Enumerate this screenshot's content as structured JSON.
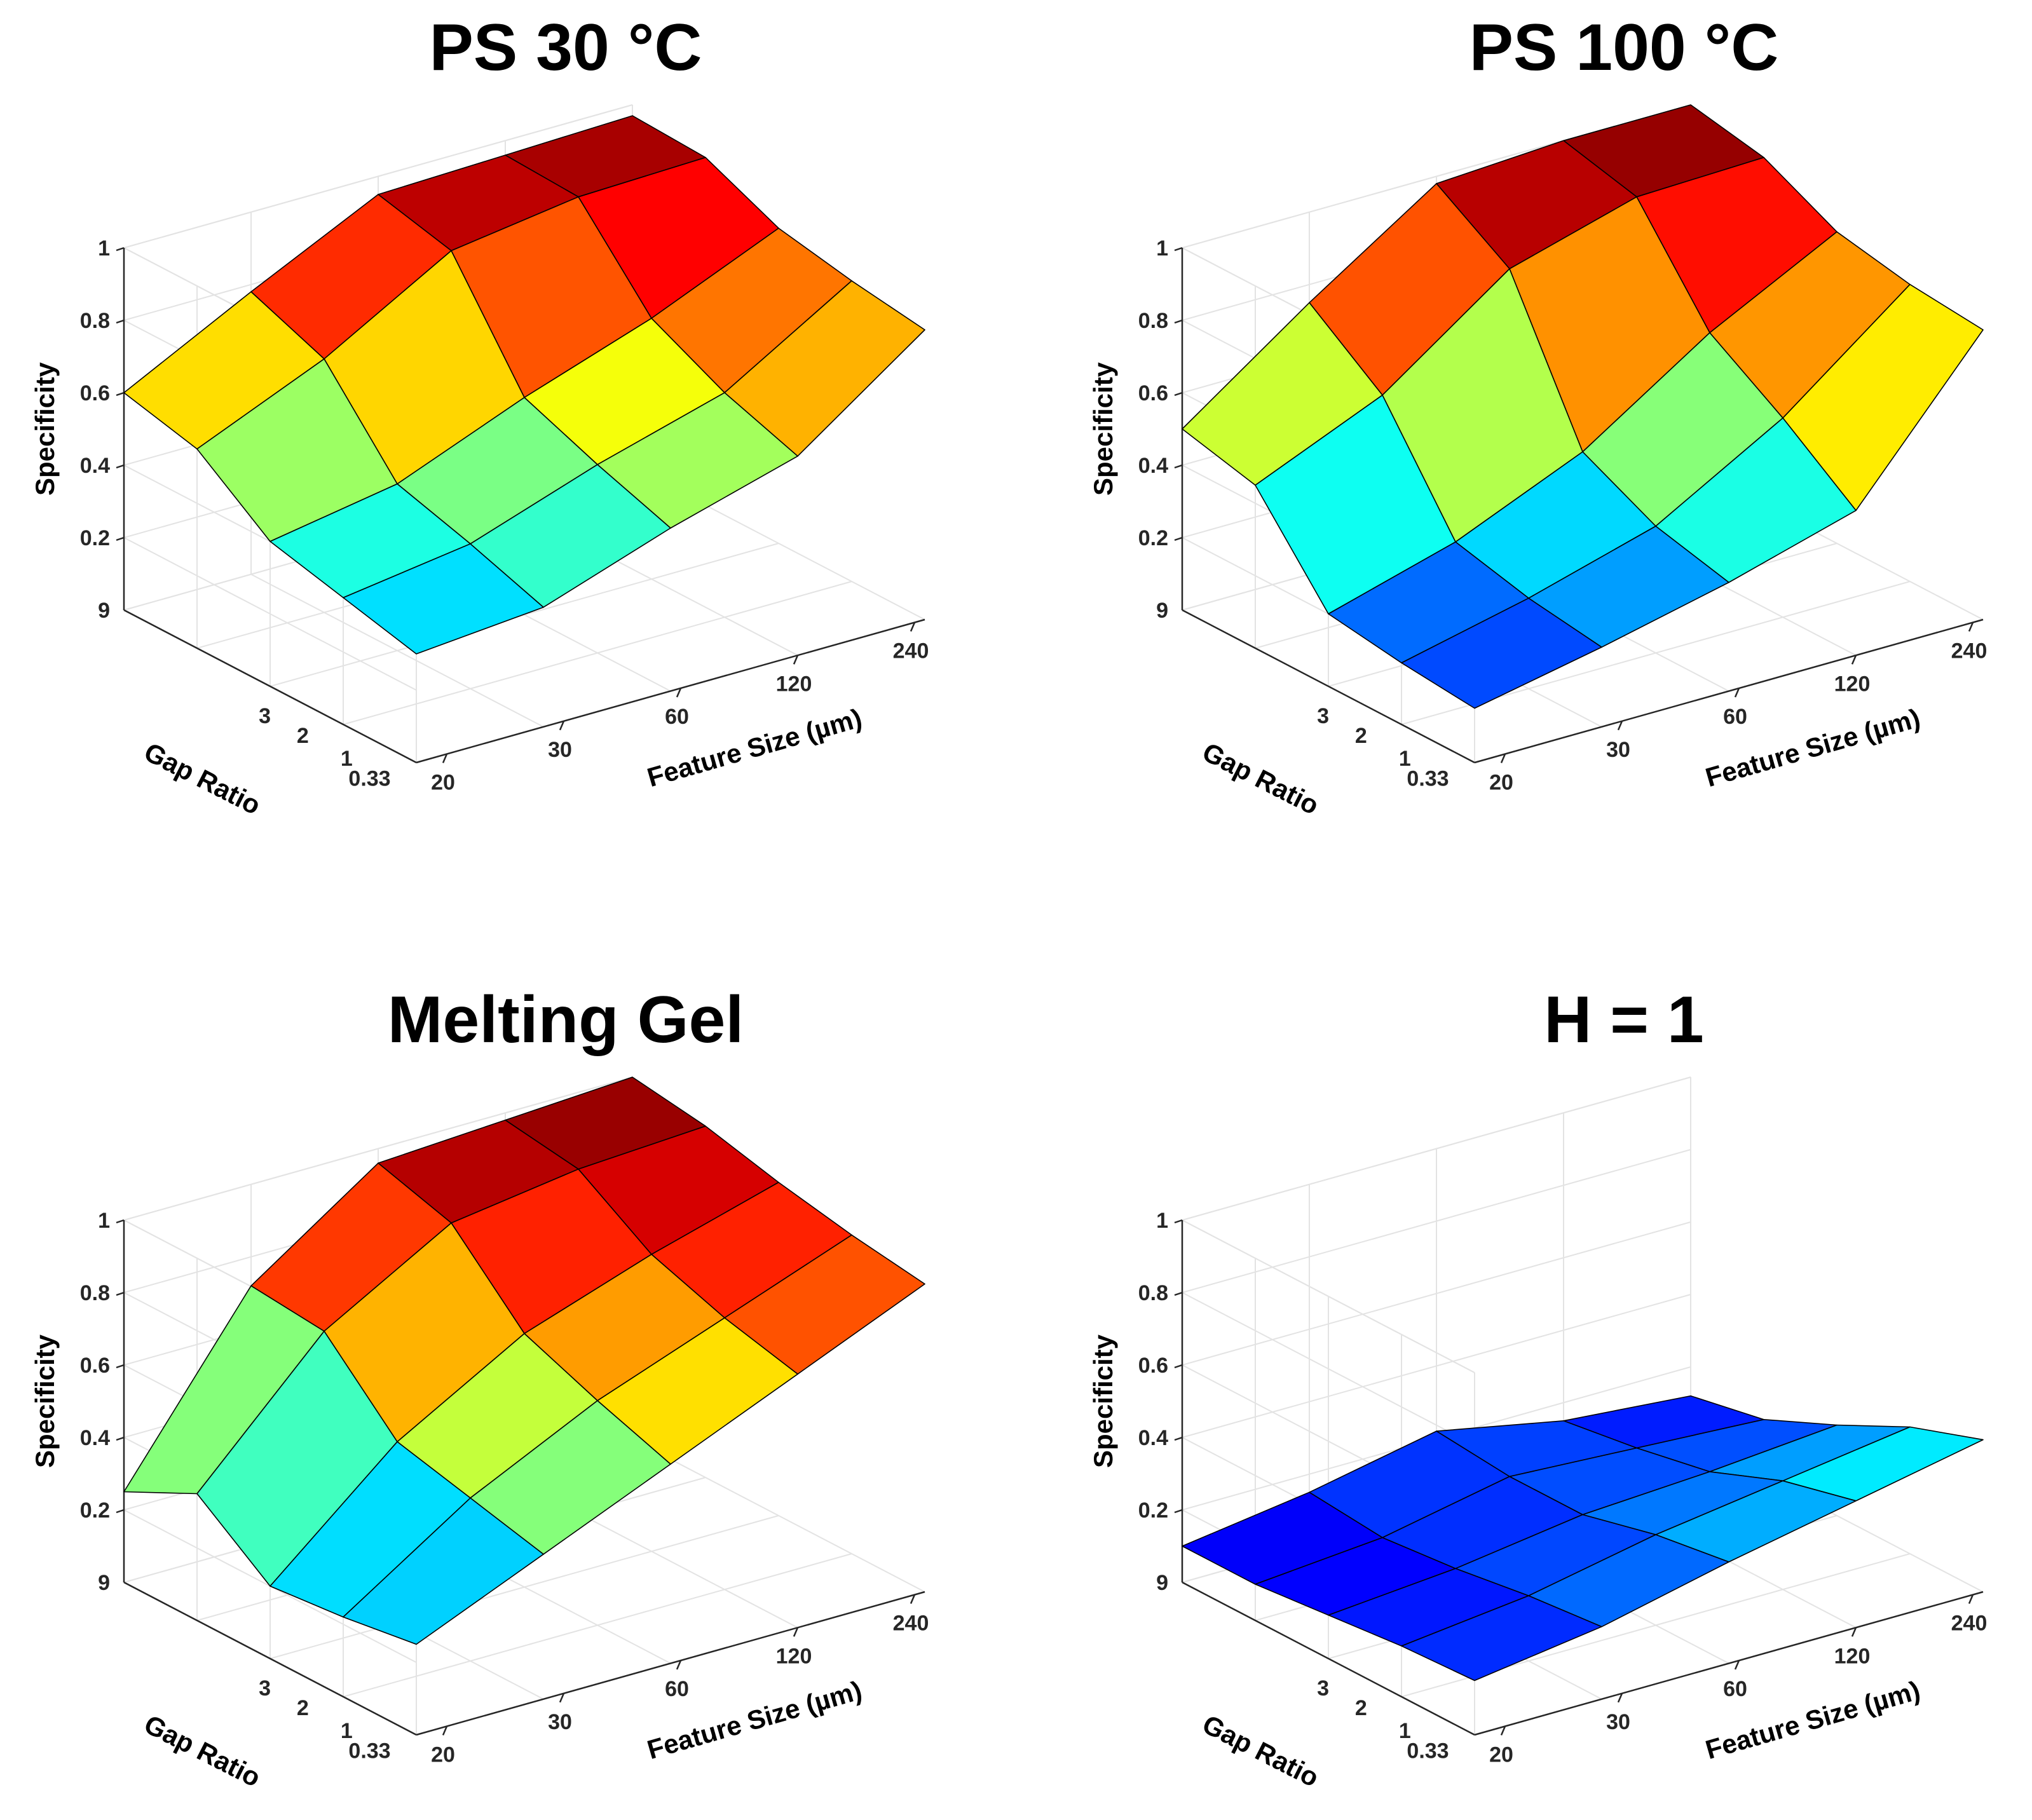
{
  "figure_title": "",
  "colormap": "jet",
  "chart_data": [
    {
      "type": "surface",
      "title": "PS 30 °C",
      "zlabel": "Specificity",
      "xlabel": "Feature Size (µm)",
      "ylabel": "Gap Ratio",
      "zticks": [
        "0.2",
        "0.4",
        "0.6",
        "0.8",
        "1"
      ],
      "zmin_tick_label": "9",
      "xticks": [
        "20",
        "30",
        "60",
        "120",
        "240"
      ],
      "yticks": [
        "3",
        "2",
        "1",
        "0.33"
      ],
      "zlim": [
        0,
        1
      ],
      "feature_size": [
        20,
        30,
        60,
        120,
        240
      ],
      "gap_ratio": [
        0.33,
        1,
        2,
        3,
        9
      ],
      "series": [
        {
          "name": "Gap Ratio 0.33",
          "values": [
            0.3,
            0.33,
            0.45,
            0.55,
            0.8
          ]
        },
        {
          "name": "Gap Ratio 1",
          "values": [
            0.35,
            0.4,
            0.52,
            0.62,
            0.83
          ]
        },
        {
          "name": "Gap Ratio 2",
          "values": [
            0.4,
            0.46,
            0.6,
            0.72,
            0.87
          ]
        },
        {
          "name": "Gap Ratio 3",
          "values": [
            0.55,
            0.7,
            0.9,
            0.95,
            0.96
          ]
        },
        {
          "name": "Gap Ratio 9",
          "values": [
            0.6,
            0.78,
            0.95,
            0.96,
            0.97
          ]
        }
      ]
    },
    {
      "type": "surface",
      "title": "PS 100 °C",
      "zlabel": "Specificity",
      "xlabel": "Feature Size (µm)",
      "ylabel": "Gap Ratio",
      "zticks": [
        "0.2",
        "0.4",
        "0.6",
        "0.8",
        "1"
      ],
      "zmin_tick_label": "9",
      "xticks": [
        "20",
        "30",
        "60",
        "120",
        "240"
      ],
      "yticks": [
        "3",
        "2",
        "1",
        "0.33"
      ],
      "zlim": [
        0,
        1
      ],
      "feature_size": [
        20,
        30,
        60,
        120,
        240
      ],
      "gap_ratio": [
        0.33,
        1,
        2,
        3,
        9
      ],
      "series": [
        {
          "name": "Gap Ratio 0.33",
          "values": [
            0.15,
            0.22,
            0.3,
            0.4,
            0.8
          ]
        },
        {
          "name": "Gap Ratio 1",
          "values": [
            0.17,
            0.25,
            0.35,
            0.55,
            0.82
          ]
        },
        {
          "name": "Gap Ratio 2",
          "values": [
            0.2,
            0.3,
            0.45,
            0.68,
            0.86
          ]
        },
        {
          "name": "Gap Ratio 3",
          "values": [
            0.45,
            0.6,
            0.85,
            0.95,
            0.96
          ]
        },
        {
          "name": "Gap Ratio 9",
          "values": [
            0.5,
            0.75,
            0.98,
            1.0,
            1.0
          ]
        }
      ]
    },
    {
      "type": "surface",
      "title": "Melting Gel",
      "zlabel": "Specificity",
      "xlabel": "Feature Size (µm)",
      "ylabel": "Gap Ratio",
      "zticks": [
        "0.2",
        "0.4",
        "0.6",
        "0.8",
        "1"
      ],
      "zmin_tick_label": "9",
      "xticks": [
        "20",
        "30",
        "60",
        "120",
        "240"
      ],
      "yticks": [
        "3",
        "2",
        "1",
        "0.33"
      ],
      "zlim": [
        0,
        1
      ],
      "feature_size": [
        20,
        30,
        60,
        120,
        240
      ],
      "gap_ratio": [
        0.33,
        1,
        2,
        3,
        9
      ],
      "series": [
        {
          "name": "Gap Ratio 0.33",
          "values": [
            0.25,
            0.4,
            0.55,
            0.7,
            0.85
          ]
        },
        {
          "name": "Gap Ratio 1",
          "values": [
            0.22,
            0.45,
            0.62,
            0.75,
            0.88
          ]
        },
        {
          "name": "Gap Ratio 2",
          "values": [
            0.2,
            0.5,
            0.7,
            0.82,
            0.92
          ]
        },
        {
          "name": "Gap Ratio 3",
          "values": [
            0.35,
            0.7,
            0.9,
            0.95,
            0.97
          ]
        },
        {
          "name": "Gap Ratio 9",
          "values": [
            0.25,
            0.72,
            0.96,
            0.98,
            1.0
          ]
        }
      ]
    },
    {
      "type": "surface",
      "title": "H = 1",
      "zlabel": "Specificity",
      "xlabel": "Feature Size (µm)",
      "ylabel": "Gap Ratio",
      "zticks": [
        "0.2",
        "0.4",
        "0.6",
        "0.8",
        "1"
      ],
      "zmin_tick_label": "9",
      "xticks": [
        "20",
        "30",
        "60",
        "120",
        "240"
      ],
      "yticks": [
        "3",
        "2",
        "1",
        "0.33"
      ],
      "zlim": [
        0,
        1
      ],
      "feature_size": [
        20,
        30,
        60,
        120,
        240
      ],
      "gap_ratio": [
        0.33,
        1,
        2,
        3,
        9
      ],
      "series": [
        {
          "name": "Gap Ratio 0.33",
          "values": [
            0.15,
            0.2,
            0.28,
            0.35,
            0.42
          ]
        },
        {
          "name": "Gap Ratio 1",
          "values": [
            0.14,
            0.18,
            0.25,
            0.3,
            0.35
          ]
        },
        {
          "name": "Gap Ratio 2",
          "values": [
            0.12,
            0.15,
            0.2,
            0.22,
            0.25
          ]
        },
        {
          "name": "Gap Ratio 3",
          "values": [
            0.1,
            0.13,
            0.2,
            0.18,
            0.16
          ]
        },
        {
          "name": "Gap Ratio 9",
          "values": [
            0.1,
            0.15,
            0.22,
            0.15,
            0.12
          ]
        }
      ]
    }
  ]
}
